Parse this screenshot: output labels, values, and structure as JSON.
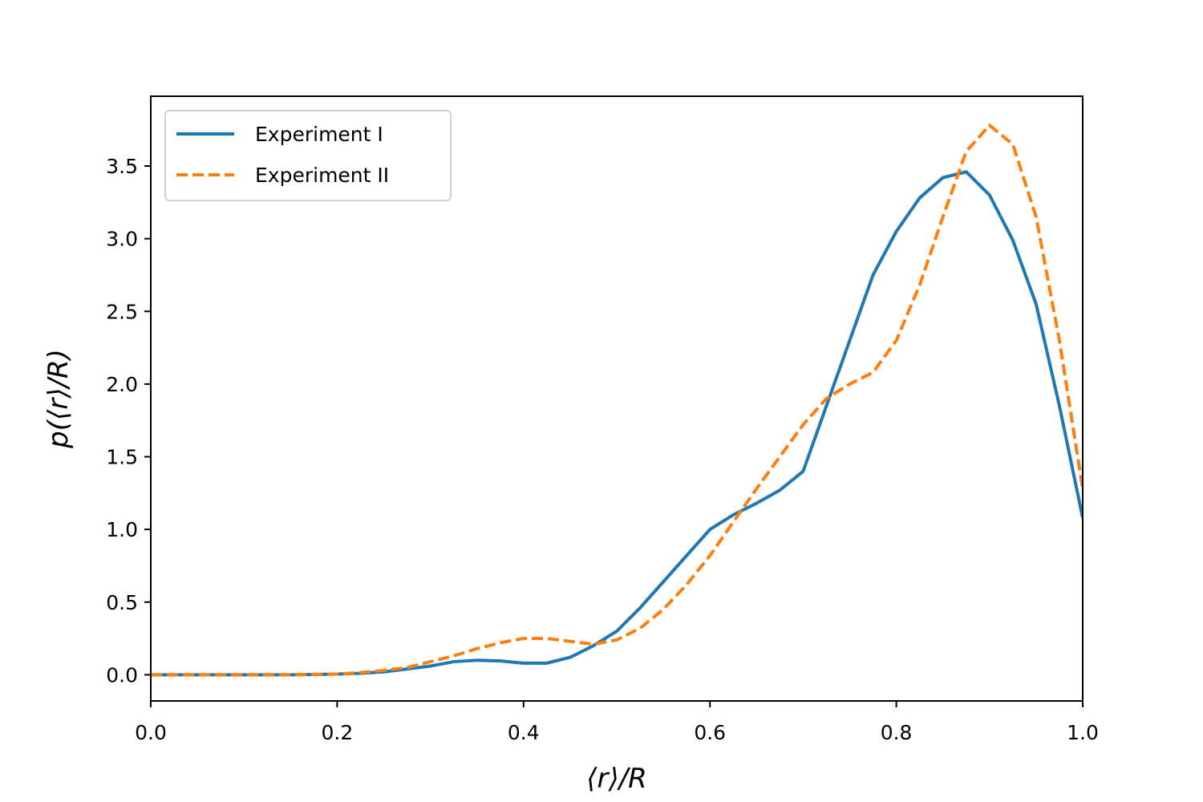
{
  "chart_data": {
    "type": "line",
    "xlabel": "⟨r⟩/R",
    "ylabel": "p(⟨r⟩/R)",
    "x": [
      0,
      0.025,
      0.05,
      0.075,
      0.1,
      0.125,
      0.15,
      0.175,
      0.2,
      0.225,
      0.25,
      0.275,
      0.3,
      0.325,
      0.35,
      0.375,
      0.4,
      0.425,
      0.45,
      0.475,
      0.5,
      0.525,
      0.55,
      0.575,
      0.6,
      0.625,
      0.65,
      0.675,
      0.7,
      0.725,
      0.75,
      0.775,
      0.8,
      0.825,
      0.85,
      0.875,
      0.9,
      0.925,
      0.95,
      0.975,
      1.0
    ],
    "series": [
      {
        "name": "Experiment I",
        "color": "#1f77b4",
        "dash": false,
        "values": [
          0,
          0,
          0,
          0,
          0,
          0,
          0,
          0.002,
          0.005,
          0.01,
          0.02,
          0.04,
          0.06,
          0.09,
          0.1,
          0.095,
          0.08,
          0.08,
          0.12,
          0.2,
          0.3,
          0.46,
          0.64,
          0.82,
          1.0,
          1.1,
          1.18,
          1.27,
          1.4,
          1.85,
          2.3,
          2.75,
          3.05,
          3.28,
          3.42,
          3.46,
          3.3,
          2.99,
          2.55,
          1.85,
          1.08
        ]
      },
      {
        "name": "Experiment II",
        "color": "#ff7f0e",
        "dash": true,
        "values": [
          0,
          0,
          0,
          0,
          0,
          0,
          0,
          0.003,
          0.005,
          0.015,
          0.03,
          0.05,
          0.09,
          0.13,
          0.18,
          0.22,
          0.25,
          0.25,
          0.23,
          0.21,
          0.24,
          0.32,
          0.45,
          0.62,
          0.82,
          1.05,
          1.28,
          1.5,
          1.72,
          1.9,
          2.0,
          2.08,
          2.3,
          2.68,
          3.15,
          3.6,
          3.78,
          3.65,
          3.15,
          2.3,
          1.28
        ]
      }
    ],
    "xlim": [
      0,
      1.0
    ],
    "xticks": [
      {
        "value": 0,
        "label": "0.0"
      },
      0.2,
      0.4,
      0.6,
      0.8,
      {
        "value": 1,
        "label": "1.0"
      }
    ],
    "ylim": [
      -0.18,
      3.98
    ],
    "yticks": [
      {
        "value": 0,
        "label": "0.0"
      },
      0.5,
      {
        "value": 1,
        "label": "1.0"
      },
      1.5,
      {
        "value": 2,
        "label": "2.0"
      },
      2.5,
      {
        "value": 3,
        "label": "3.0"
      },
      3.5
    ],
    "legend": "upper left",
    "grid": false
  }
}
